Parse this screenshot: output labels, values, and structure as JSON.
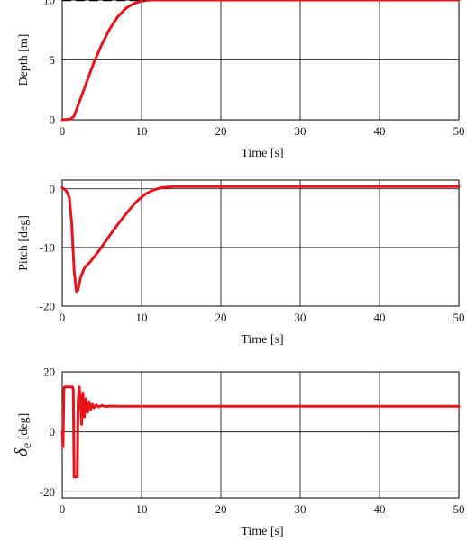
{
  "chart_data": [
    {
      "type": "line",
      "xlabel": "Time [s]",
      "ylabel": "Depth [m]",
      "xlim": [
        0,
        50
      ],
      "ylim": [
        0,
        10
      ],
      "xticks": [
        "0",
        "10",
        "20",
        "30",
        "40",
        "50"
      ],
      "yticks": [
        "0",
        "5",
        "10"
      ],
      "grid": true,
      "series": [
        {
          "color": "#e8141b",
          "style": "solid",
          "x": [
            0,
            1,
            1.5,
            2,
            3,
            4,
            5,
            6,
            7,
            8,
            9,
            10,
            11,
            12,
            13,
            15,
            50
          ],
          "y": [
            0,
            0.05,
            0.3,
            1.2,
            3.0,
            4.8,
            6.3,
            7.6,
            8.6,
            9.3,
            9.7,
            9.9,
            10.0,
            10.0,
            10.0,
            10.0,
            10.0
          ]
        },
        {
          "color": "#000000",
          "style": "dashed",
          "x": [
            0,
            10.5
          ],
          "y": [
            10,
            10
          ]
        }
      ]
    },
    {
      "type": "line",
      "xlabel": "Time [s]",
      "ylabel": "Pitch [deg]",
      "xlim": [
        0,
        50
      ],
      "ylim": [
        -20,
        1.5
      ],
      "xticks": [
        "0",
        "10",
        "20",
        "30",
        "40",
        "50"
      ],
      "yticks": [
        "0",
        "-10",
        "-20"
      ],
      "grid": true,
      "series": [
        {
          "color": "#e8141b",
          "style": "solid",
          "x": [
            0,
            0.5,
            0.9,
            1.2,
            1.5,
            1.8,
            2.0,
            2.3,
            2.8,
            3.5,
            4.5,
            5.5,
            6.5,
            7.5,
            8.5,
            9.5,
            10.5,
            11.5,
            12.5,
            14,
            16,
            50
          ],
          "y": [
            0.2,
            -0.3,
            -1.5,
            -6,
            -14,
            -17.5,
            -17.2,
            -15.2,
            -13.5,
            -12.5,
            -10.8,
            -8.9,
            -7.0,
            -5.2,
            -3.5,
            -2.0,
            -0.9,
            -0.2,
            0.2,
            0.4,
            0.4,
            0.4
          ]
        }
      ]
    },
    {
      "type": "line",
      "xlabel": "Time [s]",
      "ylabel": "δe [deg]",
      "ylabel_main": "δ",
      "ylabel_sub": "e",
      "ylabel_unit": "[deg]",
      "xlim": [
        0,
        50
      ],
      "ylim": [
        -22,
        20
      ],
      "xticks": [
        "0",
        "10",
        "20",
        "30",
        "40",
        "50"
      ],
      "yticks": [
        "20",
        "0",
        "-20"
      ],
      "grid": true,
      "series": [
        {
          "color": "#e8141b",
          "style": "solid",
          "x": [
            0,
            0.1,
            0.2,
            0.3,
            1.3,
            1.4,
            1.5,
            1.9,
            2.0,
            2.15,
            2.3,
            2.45,
            2.6,
            2.8,
            3.0,
            3.2,
            3.4,
            3.6,
            3.8,
            4.0,
            4.3,
            4.6,
            5.0,
            5.5,
            6,
            7,
            8,
            9,
            10,
            12,
            50
          ],
          "y": [
            0,
            -5,
            14,
            15,
            15,
            14,
            -15,
            -15,
            10,
            15,
            10,
            2.5,
            13,
            5,
            11,
            6.5,
            10,
            7.5,
            9.2,
            8.0,
            9.0,
            8.3,
            8.8,
            8.4,
            8.6,
            8.5,
            8.5,
            8.5,
            8.5,
            8.5,
            8.5
          ]
        }
      ]
    }
  ]
}
